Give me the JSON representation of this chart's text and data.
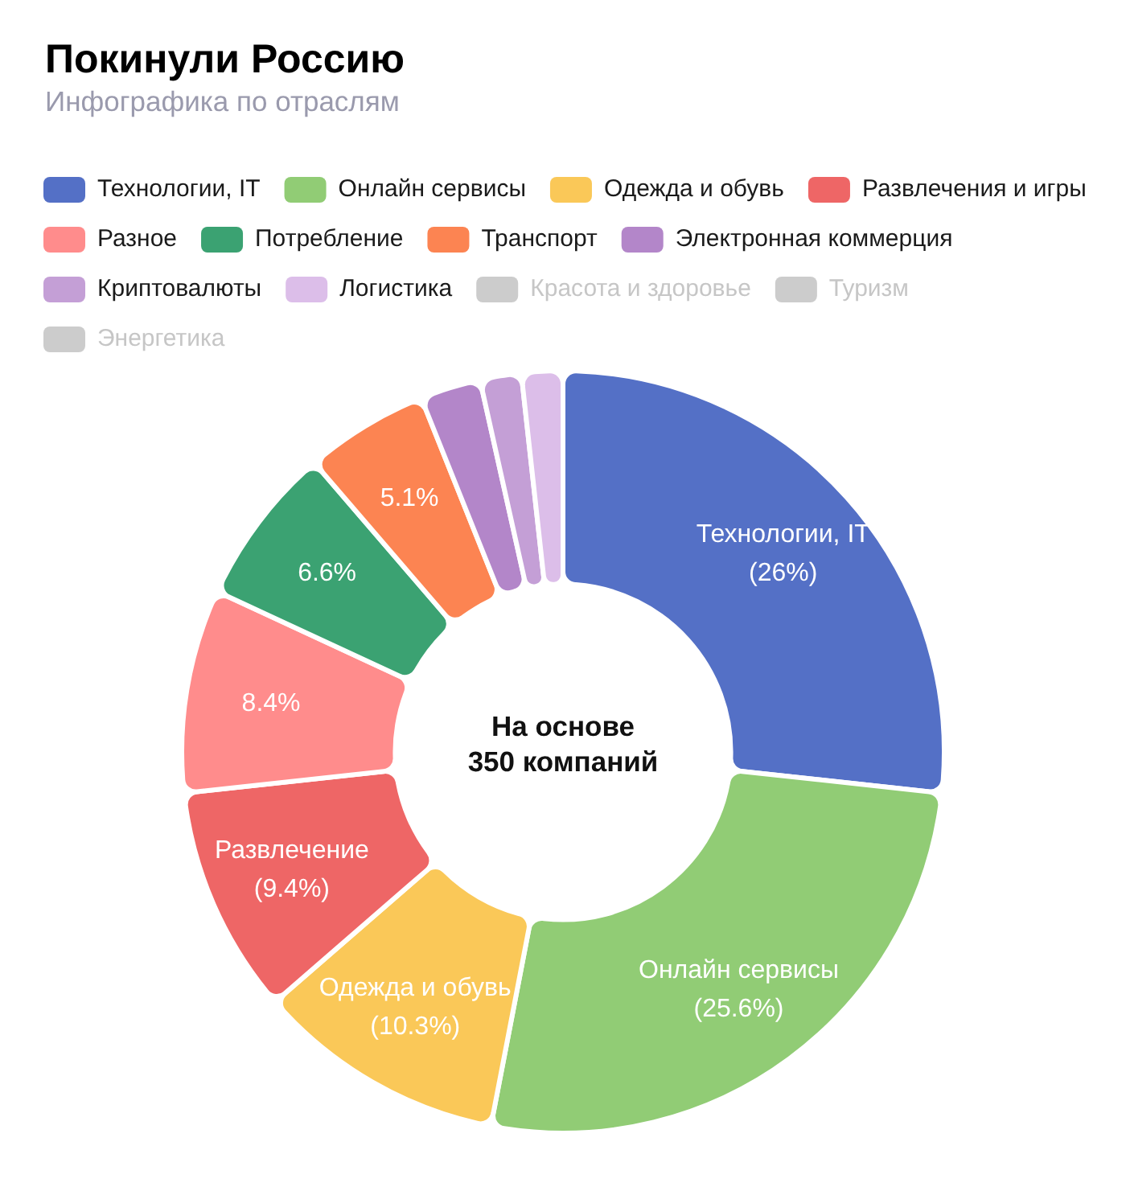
{
  "chart_data": {
    "type": "donut",
    "title": "Покинули Россию",
    "subtitle": "Инфографика по отраслям",
    "categories": [
      "Технологии, IT",
      "Онлайн сервисы",
      "Одежда и обувь",
      "Развлечения и игры",
      "Разное",
      "Потребление",
      "Транспорт",
      "Электронная коммерция",
      "Криптовалюты",
      "Логистика",
      "Красота и здоровье",
      "Туризм",
      "Энергетика"
    ],
    "values": [
      26,
      25.6,
      10.3,
      9.4,
      8.4,
      6.6,
      5.1,
      2.5,
      1.7,
      1.7,
      null,
      null,
      null
    ],
    "colors": [
      "#5470c6",
      "#91cc75",
      "#fac858",
      "#ee6666",
      "#ff8c8c",
      "#3ba272",
      "#fc8452",
      "#b386c9",
      "#c49fd6",
      "#dcbee9",
      "#cccccc",
      "#cccccc",
      "#cccccc"
    ],
    "value_labels": [
      "Технологии, IT\n(26%)",
      "Онлайн сервисы\n(25.6%)",
      "Одежда и обувь\n(10.3%)",
      "Развлечение\n(9.4%)",
      "8.4%",
      "6.6%",
      "5.1%",
      null,
      null,
      null,
      null,
      null,
      null
    ],
    "legend": "top left",
    "annotations": [
      "На основе\n350 компаний"
    ]
  }
}
